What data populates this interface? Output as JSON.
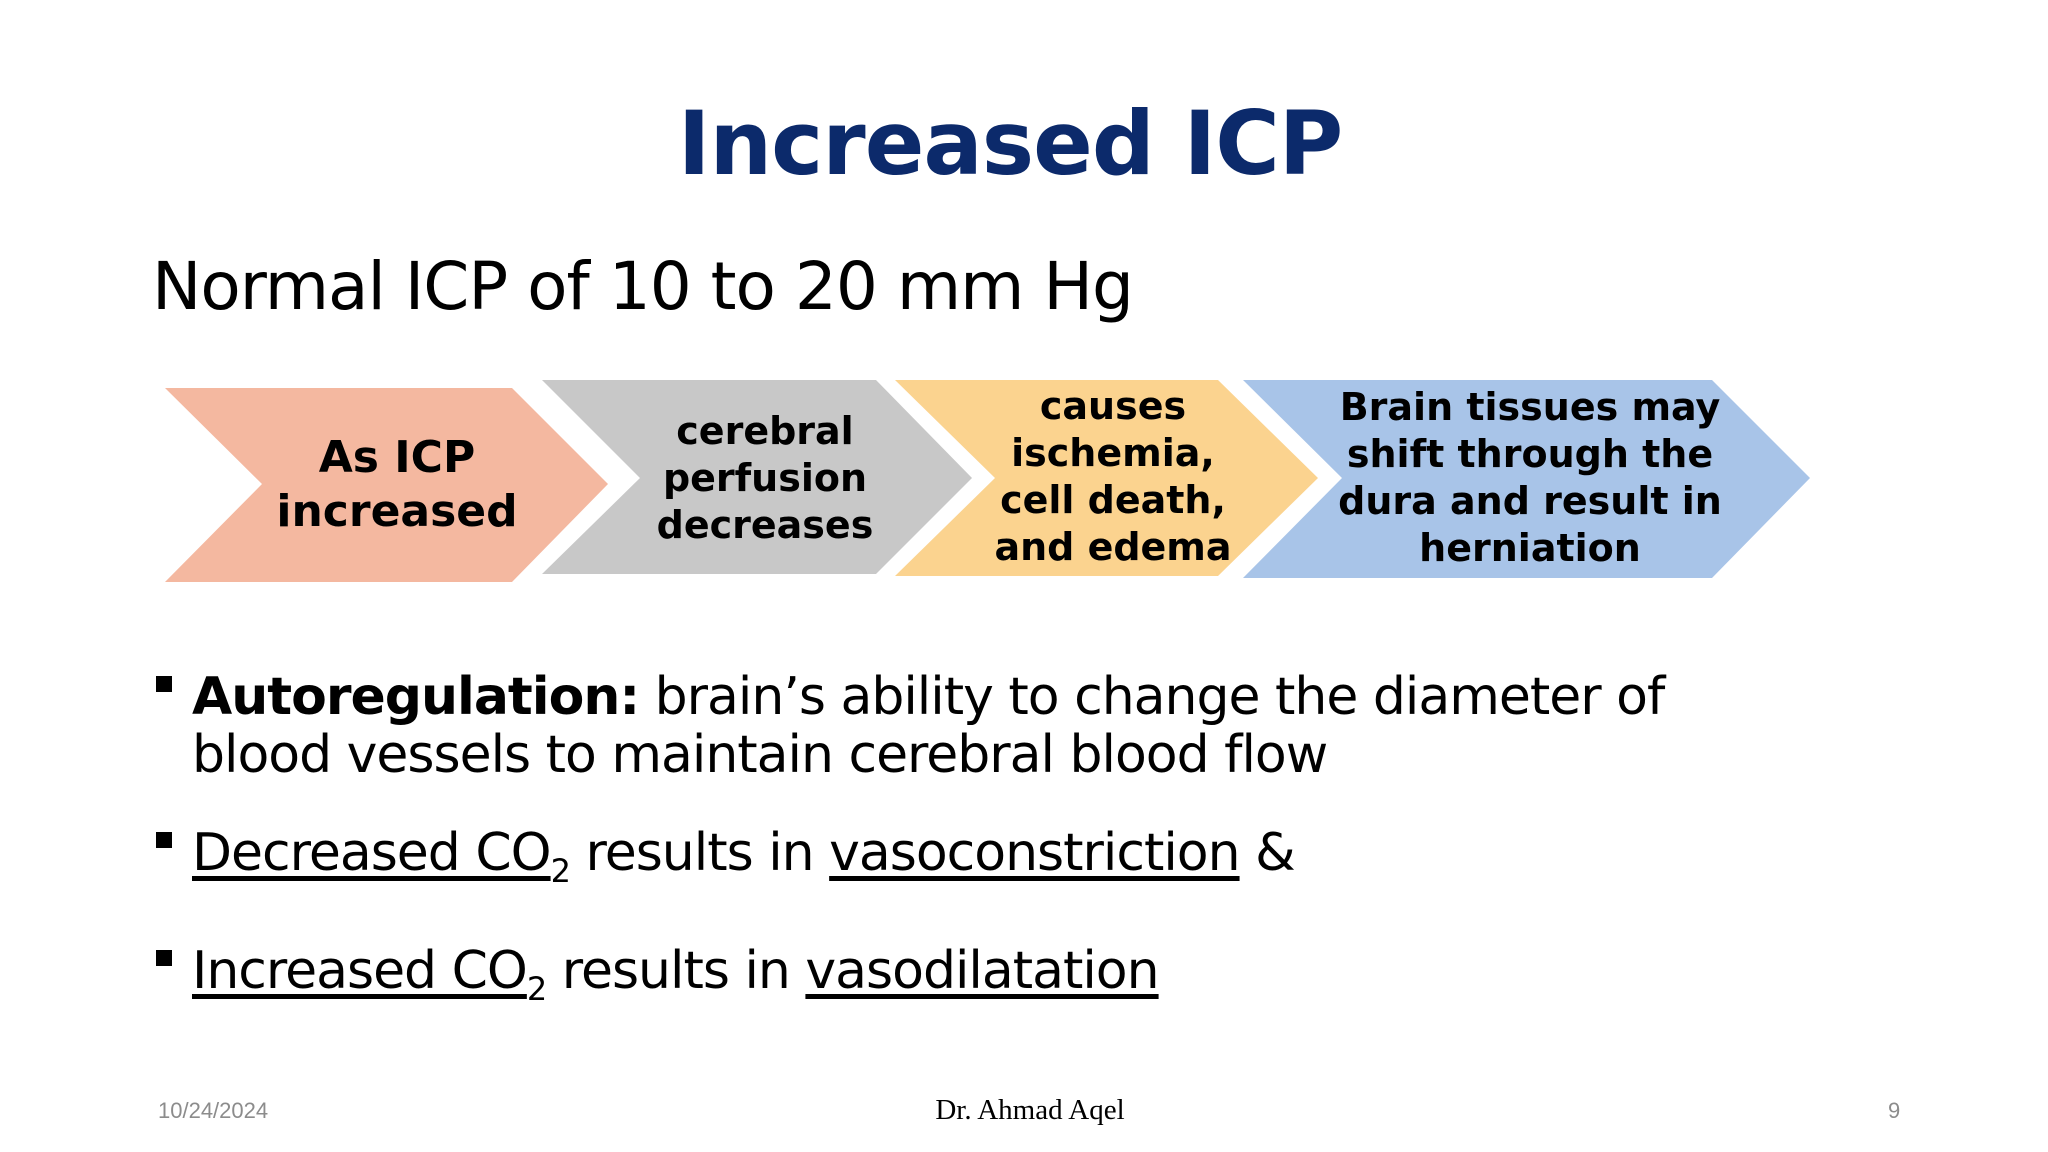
{
  "slide": {
    "title": "Increased ICP",
    "subtitle": "Normal ICP of 10 to 20 mm Hg"
  },
  "process": [
    {
      "text": "As ICP\nincreased",
      "color": "#f4b8a0"
    },
    {
      "text": "cerebral\nperfusion\ndecreases",
      "color": "#c8c8c8"
    },
    {
      "text": "causes\nischemia,\ncell death,\nand edema",
      "color": "#fbd38f"
    },
    {
      "text": "Brain tissues may\nshift through the\ndura and result in\nherniation",
      "color": "#a8c4e8"
    }
  ],
  "bullets": {
    "autoregulation_term": "Autoregulation:",
    "autoregulation_text": " brain’s ability to change the diameter of blood vessels to maintain cerebral blood flow",
    "decreased_co": "Decreased CO",
    "co_subscript": "2",
    "results_in": " results in ",
    "vasoconstriction": "vasoconstriction",
    "ampersand": " &",
    "increased_co": "Increased CO",
    "vasodilatation": "vasodilatation"
  },
  "footer": {
    "date": "10/24/2024",
    "author": "Dr. Ahmad Aqel",
    "page": "9"
  }
}
